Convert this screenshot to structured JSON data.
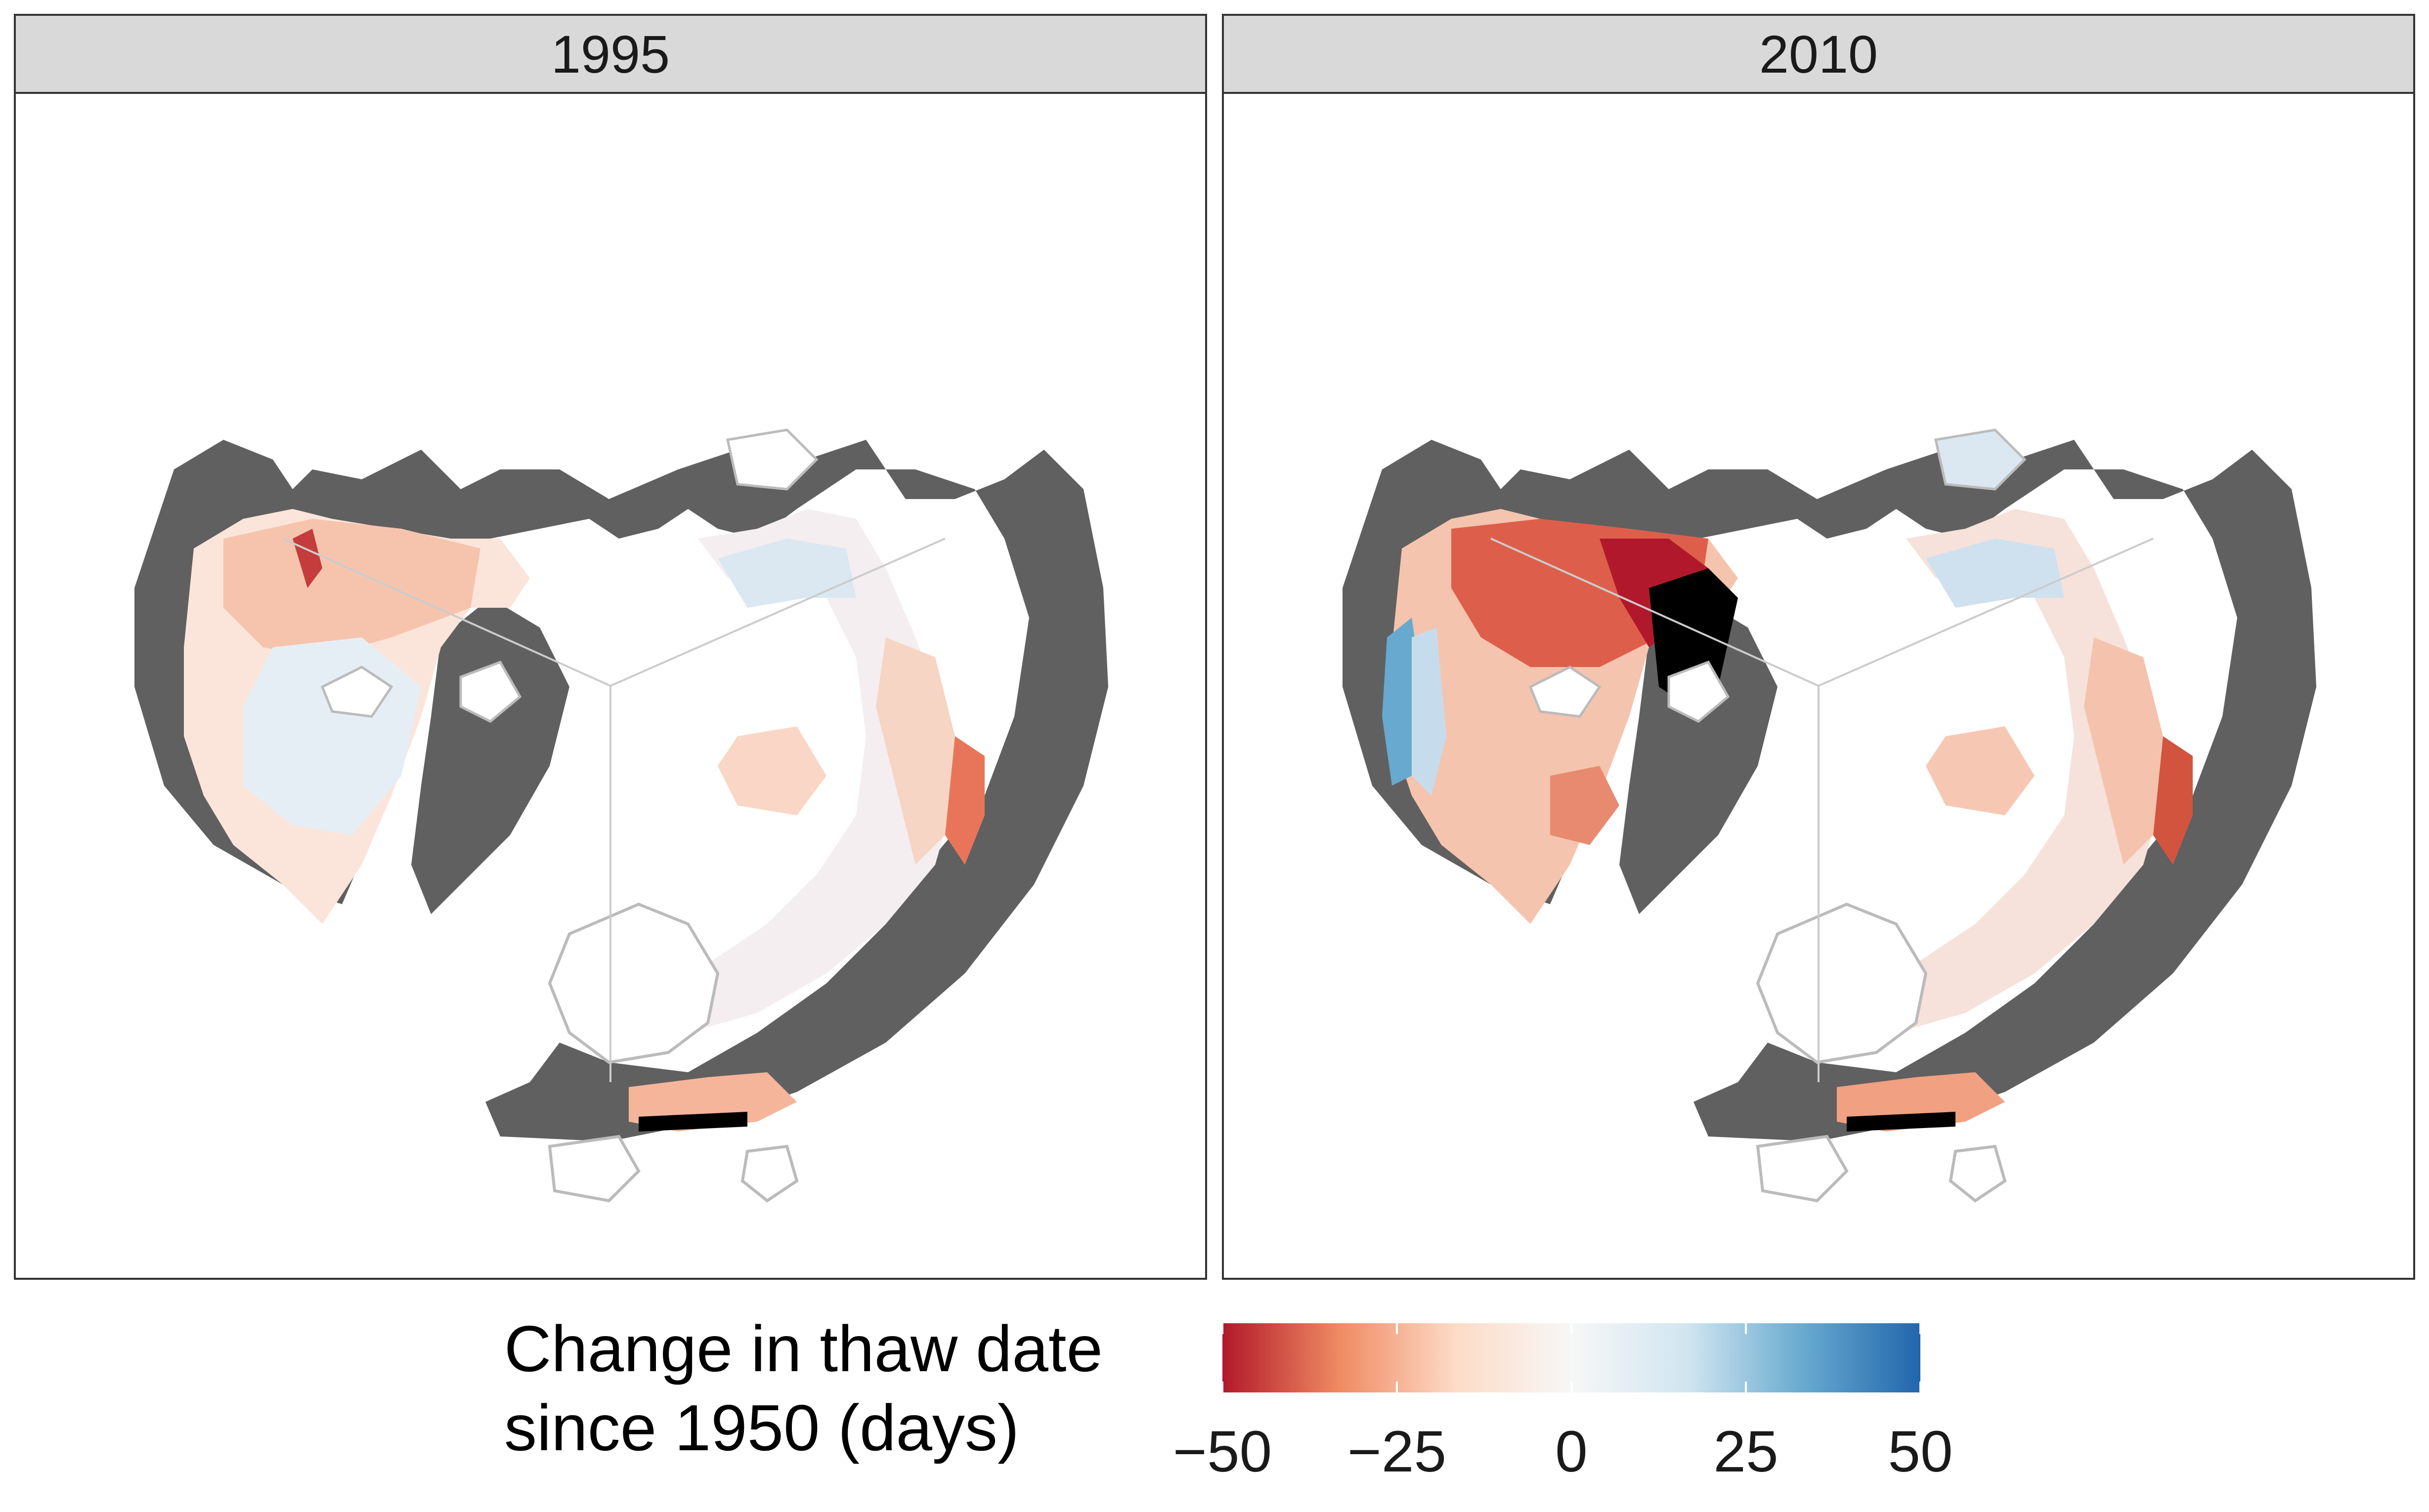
{
  "panels": [
    {
      "label": "1995"
    },
    {
      "label": "2010"
    }
  ],
  "legend": {
    "title_line1": "Change in thaw date",
    "title_line2": "since 1950 (days)",
    "ticks": [
      "−50",
      "−25",
      "0",
      "25",
      "50"
    ],
    "tick_values": [
      -50,
      -25,
      0,
      25,
      50
    ],
    "range": [
      -50,
      50
    ],
    "colors": [
      "#b2182b",
      "#ef8a62",
      "#fddbc7",
      "#f7f7f7",
      "#d1e5f0",
      "#67a9cf",
      "#2166ac"
    ]
  },
  "map_colors": {
    "land_outside": "#606060",
    "no_data": "#000000",
    "ocean": "#ffffff",
    "borders": "#bbbbbb"
  },
  "chart_data": {
    "type": "heatmap",
    "projection": "north polar stereographic",
    "facets": [
      "1995",
      "2010"
    ],
    "color_scale": {
      "variable": "Change in thaw date since 1950 (days)",
      "min": -50,
      "max": 50,
      "palette": "red-white-blue diverging"
    }
  }
}
